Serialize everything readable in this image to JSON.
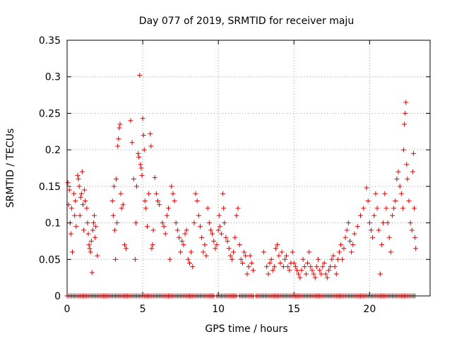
{
  "chart_data": {
    "type": "scatter",
    "title": "Day 077 of 2019, SRMTID for receiver maju",
    "xlabel": "GPS time / hours",
    "ylabel": "SRMTID / TECUs",
    "xlim": [
      0,
      24
    ],
    "ylim": [
      0,
      0.35
    ],
    "xticks": [
      0,
      5,
      10,
      15,
      20
    ],
    "xtick_labels": [
      "0",
      "5",
      "10",
      "15",
      "20"
    ],
    "yticks": [
      0,
      0.05,
      0.1,
      0.15,
      0.2,
      0.25,
      0.3,
      0.35
    ],
    "ytick_labels": [
      "0",
      "0.05",
      "0.1",
      "0.15",
      "0.2",
      "0.25",
      "0.3",
      "0.35"
    ],
    "grid": true,
    "marker": "plus",
    "color": "#e00000",
    "series": [
      {
        "name": "SRMTID",
        "points": [
          [
            0.05,
            0.155
          ],
          [
            0.1,
            0.125
          ],
          [
            0.15,
            0.145
          ],
          [
            0.2,
            0.1
          ],
          [
            0.25,
            0.085
          ],
          [
            0.3,
            0.12
          ],
          [
            0.35,
            0.06
          ],
          [
            0.45,
            0.14
          ],
          [
            0.5,
            0.11
          ],
          [
            0.55,
            0.13
          ],
          [
            0.6,
            0.095
          ],
          [
            0.7,
            0.165
          ],
          [
            0.75,
            0.16
          ],
          [
            0.8,
            0.15
          ],
          [
            0.85,
            0.11
          ],
          [
            0.9,
            0.135
          ],
          [
            0.95,
            0.14
          ],
          [
            1.0,
            0.17
          ],
          [
            1.05,
            0.125
          ],
          [
            1.1,
            0.09
          ],
          [
            1.15,
            0.145
          ],
          [
            1.2,
            0.13
          ],
          [
            1.3,
            0.12
          ],
          [
            1.35,
            0.1
          ],
          [
            1.4,
            0.085
          ],
          [
            1.45,
            0.07
          ],
          [
            1.5,
            0.065
          ],
          [
            1.55,
            0.06
          ],
          [
            1.6,
            0.075
          ],
          [
            1.65,
            0.032
          ],
          [
            1.7,
            0.09
          ],
          [
            1.75,
            0.1
          ],
          [
            1.8,
            0.11
          ],
          [
            1.85,
            0.08
          ],
          [
            1.9,
            0.095
          ],
          [
            2.0,
            0.055
          ],
          [
            3.0,
            0.13
          ],
          [
            3.05,
            0.11
          ],
          [
            3.1,
            0.15
          ],
          [
            3.15,
            0.09
          ],
          [
            3.2,
            0.05
          ],
          [
            3.25,
            0.16
          ],
          [
            3.3,
            0.1
          ],
          [
            3.35,
            0.205
          ],
          [
            3.4,
            0.215
          ],
          [
            3.45,
            0.23
          ],
          [
            3.5,
            0.235
          ],
          [
            3.55,
            0.14
          ],
          [
            3.6,
            0.12
          ],
          [
            3.7,
            0.125
          ],
          [
            3.8,
            0.07
          ],
          [
            3.9,
            0.065
          ],
          [
            4.2,
            0.24
          ],
          [
            4.3,
            0.21
          ],
          [
            4.4,
            0.16
          ],
          [
            4.5,
            0.05
          ],
          [
            4.55,
            0.1
          ],
          [
            4.6,
            0.15
          ],
          [
            4.7,
            0.195
          ],
          [
            4.75,
            0.19
          ],
          [
            4.8,
            0.302
          ],
          [
            4.85,
            0.18
          ],
          [
            4.9,
            0.175
          ],
          [
            4.95,
            0.165
          ],
          [
            5.0,
            0.243
          ],
          [
            5.05,
            0.22
          ],
          [
            5.1,
            0.2
          ],
          [
            5.15,
            0.13
          ],
          [
            5.2,
            0.12
          ],
          [
            5.3,
            0.095
          ],
          [
            5.4,
            0.14
          ],
          [
            5.5,
            0.222
          ],
          [
            5.55,
            0.205
          ],
          [
            5.6,
            0.065
          ],
          [
            5.65,
            0.07
          ],
          [
            5.7,
            0.09
          ],
          [
            5.8,
            0.162
          ],
          [
            5.9,
            0.14
          ],
          [
            6.0,
            0.13
          ],
          [
            6.1,
            0.125
          ],
          [
            6.3,
            0.1
          ],
          [
            6.4,
            0.095
          ],
          [
            6.5,
            0.085
          ],
          [
            6.6,
            0.11
          ],
          [
            6.7,
            0.12
          ],
          [
            6.8,
            0.05
          ],
          [
            6.9,
            0.15
          ],
          [
            7.0,
            0.14
          ],
          [
            7.1,
            0.13
          ],
          [
            7.2,
            0.1
          ],
          [
            7.3,
            0.09
          ],
          [
            7.4,
            0.08
          ],
          [
            7.5,
            0.06
          ],
          [
            7.6,
            0.075
          ],
          [
            7.7,
            0.07
          ],
          [
            7.8,
            0.085
          ],
          [
            7.9,
            0.09
          ],
          [
            8.0,
            0.05
          ],
          [
            8.1,
            0.045
          ],
          [
            8.2,
            0.06
          ],
          [
            8.3,
            0.04
          ],
          [
            8.4,
            0.1
          ],
          [
            8.5,
            0.14
          ],
          [
            8.6,
            0.13
          ],
          [
            8.7,
            0.11
          ],
          [
            8.8,
            0.095
          ],
          [
            8.9,
            0.08
          ],
          [
            9.0,
            0.06
          ],
          [
            9.1,
            0.07
          ],
          [
            9.2,
            0.055
          ],
          [
            9.3,
            0.12
          ],
          [
            9.4,
            0.1
          ],
          [
            9.5,
            0.09
          ],
          [
            9.6,
            0.085
          ],
          [
            9.7,
            0.075
          ],
          [
            9.8,
            0.065
          ],
          [
            9.9,
            0.07
          ],
          [
            10.0,
            0.09
          ],
          [
            10.05,
            0.11
          ],
          [
            10.1,
            0.095
          ],
          [
            10.2,
            0.085
          ],
          [
            10.3,
            0.14
          ],
          [
            10.35,
            0.12
          ],
          [
            10.4,
            0.1
          ],
          [
            10.5,
            0.08
          ],
          [
            10.6,
            0.075
          ],
          [
            10.7,
            0.065
          ],
          [
            10.8,
            0.055
          ],
          [
            10.9,
            0.05
          ],
          [
            11.0,
            0.06
          ],
          [
            11.1,
            0.08
          ],
          [
            11.2,
            0.11
          ],
          [
            11.3,
            0.12
          ],
          [
            11.4,
            0.07
          ],
          [
            11.5,
            0.05
          ],
          [
            11.6,
            0.045
          ],
          [
            11.7,
            0.06
          ],
          [
            11.8,
            0.055
          ],
          [
            11.9,
            0.03
          ],
          [
            12.0,
            0.04
          ],
          [
            12.1,
            0.055
          ],
          [
            12.2,
            0.045
          ],
          [
            12.3,
            0.035
          ],
          [
            13.0,
            0.06
          ],
          [
            13.2,
            0.04
          ],
          [
            13.3,
            0.03
          ],
          [
            13.4,
            0.045
          ],
          [
            13.5,
            0.05
          ],
          [
            13.6,
            0.035
          ],
          [
            13.7,
            0.04
          ],
          [
            13.8,
            0.065
          ],
          [
            13.9,
            0.07
          ],
          [
            14.0,
            0.055
          ],
          [
            14.1,
            0.045
          ],
          [
            14.2,
            0.06
          ],
          [
            14.3,
            0.04
          ],
          [
            14.4,
            0.05
          ],
          [
            14.5,
            0.055
          ],
          [
            14.6,
            0.04
          ],
          [
            14.7,
            0.035
          ],
          [
            14.8,
            0.045
          ],
          [
            14.9,
            0.06
          ],
          [
            15.0,
            0.045
          ],
          [
            15.1,
            0.04
          ],
          [
            15.2,
            0.035
          ],
          [
            15.3,
            0.03
          ],
          [
            15.4,
            0.025
          ],
          [
            15.5,
            0.035
          ],
          [
            15.6,
            0.05
          ],
          [
            15.7,
            0.04
          ],
          [
            15.8,
            0.03
          ],
          [
            15.9,
            0.045
          ],
          [
            16.0,
            0.06
          ],
          [
            16.1,
            0.04
          ],
          [
            16.2,
            0.035
          ],
          [
            16.3,
            0.03
          ],
          [
            16.4,
            0.025
          ],
          [
            16.5,
            0.04
          ],
          [
            16.6,
            0.05
          ],
          [
            16.7,
            0.035
          ],
          [
            16.8,
            0.03
          ],
          [
            16.9,
            0.04
          ],
          [
            17.0,
            0.045
          ],
          [
            17.1,
            0.03
          ],
          [
            17.2,
            0.025
          ],
          [
            17.3,
            0.035
          ],
          [
            17.4,
            0.04
          ],
          [
            17.5,
            0.05
          ],
          [
            17.6,
            0.055
          ],
          [
            17.7,
            0.04
          ],
          [
            17.8,
            0.03
          ],
          [
            17.9,
            0.05
          ],
          [
            18.0,
            0.06
          ],
          [
            18.1,
            0.07
          ],
          [
            18.2,
            0.05
          ],
          [
            18.3,
            0.065
          ],
          [
            18.4,
            0.08
          ],
          [
            18.5,
            0.09
          ],
          [
            18.6,
            0.1
          ],
          [
            18.7,
            0.075
          ],
          [
            18.8,
            0.06
          ],
          [
            18.9,
            0.07
          ],
          [
            19.0,
            0.085
          ],
          [
            19.2,
            0.095
          ],
          [
            19.4,
            0.11
          ],
          [
            19.6,
            0.12
          ],
          [
            19.8,
            0.148
          ],
          [
            19.9,
            0.13
          ],
          [
            20.0,
            0.1
          ],
          [
            20.1,
            0.09
          ],
          [
            20.2,
            0.08
          ],
          [
            20.3,
            0.11
          ],
          [
            20.4,
            0.14
          ],
          [
            20.5,
            0.12
          ],
          [
            20.6,
            0.09
          ],
          [
            20.7,
            0.03
          ],
          [
            20.8,
            0.07
          ],
          [
            20.9,
            0.1
          ],
          [
            21.0,
            0.14
          ],
          [
            21.1,
            0.12
          ],
          [
            21.2,
            0.1
          ],
          [
            21.3,
            0.08
          ],
          [
            21.4,
            0.06
          ],
          [
            21.5,
            0.11
          ],
          [
            21.6,
            0.12
          ],
          [
            21.7,
            0.13
          ],
          [
            21.8,
            0.16
          ],
          [
            21.9,
            0.17
          ],
          [
            22.0,
            0.15
          ],
          [
            22.1,
            0.14
          ],
          [
            22.2,
            0.12
          ],
          [
            22.25,
            0.2
          ],
          [
            22.3,
            0.235
          ],
          [
            22.35,
            0.25
          ],
          [
            22.4,
            0.265
          ],
          [
            22.45,
            0.18
          ],
          [
            22.5,
            0.16
          ],
          [
            22.6,
            0.13
          ],
          [
            22.7,
            0.1
          ],
          [
            22.8,
            0.09
          ],
          [
            22.85,
            0.17
          ],
          [
            22.9,
            0.195
          ],
          [
            22.95,
            0.12
          ],
          [
            23.0,
            0.08
          ],
          [
            23.05,
            0.065
          ]
        ]
      }
    ],
    "zero_band": {
      "y": 0,
      "segments": [
        [
          0.0,
          9.7
        ],
        [
          9.9,
          11.2
        ],
        [
          11.4,
          12.3
        ],
        [
          12.5,
          23.0
        ]
      ]
    }
  }
}
